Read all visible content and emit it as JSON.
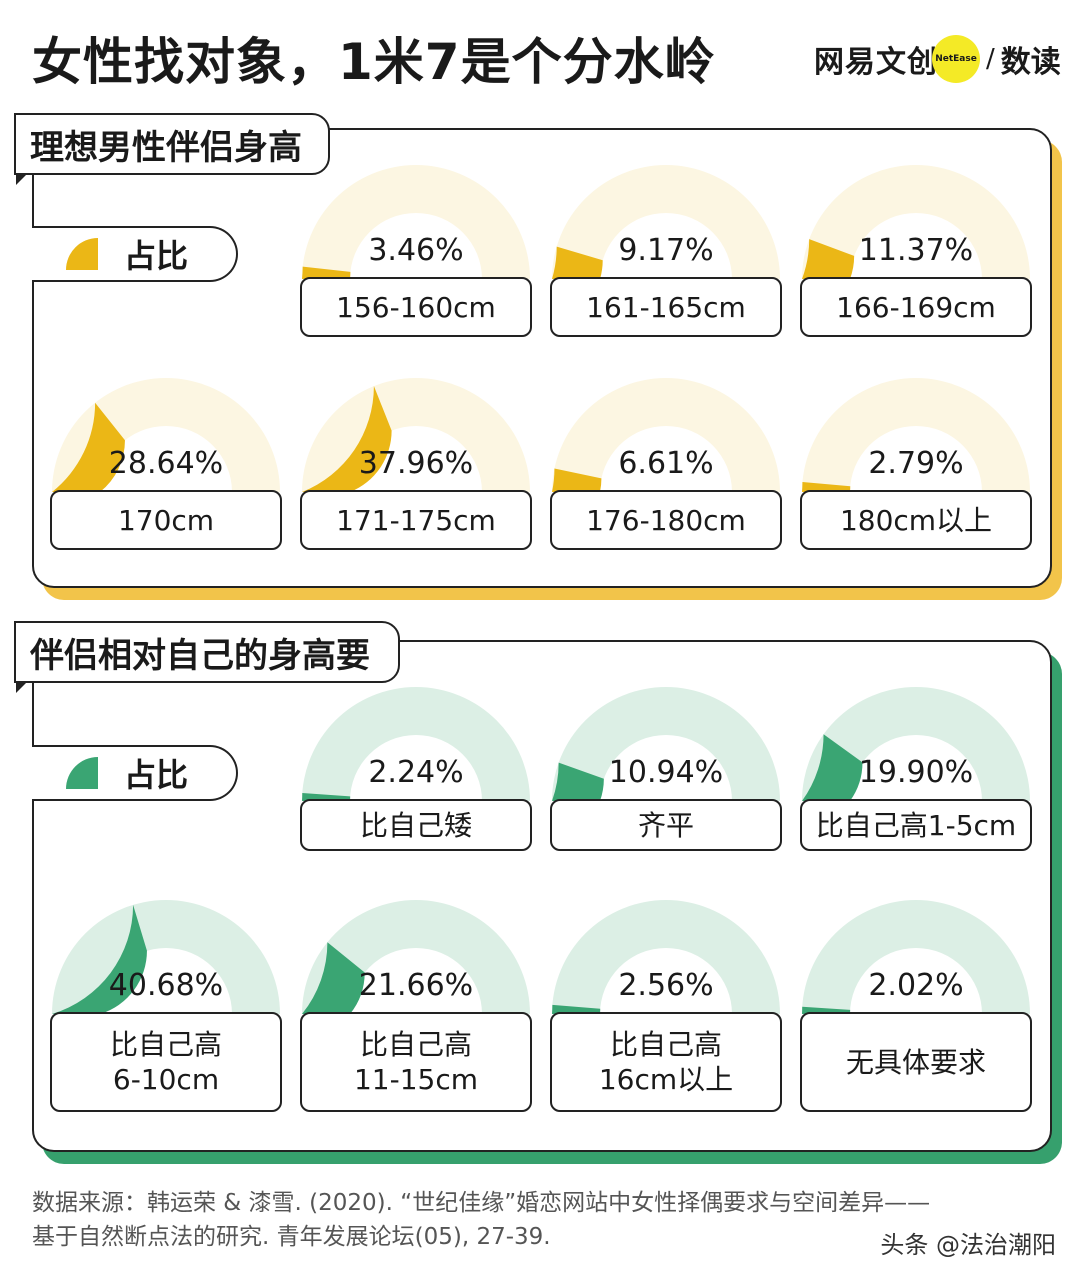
{
  "title": "女性找对象，1米7是个分水岭",
  "brand": {
    "name": "网易文创",
    "badge": "NetEase",
    "slash": "/",
    "sub": "数读"
  },
  "colors": {
    "yellow": "#ebb716",
    "yellow_track": "#fcf6e2",
    "green": "#3aa573",
    "green_track": "#dcefe5",
    "yellow_shadow": "#f2c44a",
    "green_shadow": "#36a06d"
  },
  "sections": [
    {
      "label": "理想男性伴侣身高",
      "legend": "占比",
      "items": [
        {
          "pct": "3.46%",
          "label": [
            "156-160cm"
          ]
        },
        {
          "pct": "9.17%",
          "label": [
            "161-165cm"
          ]
        },
        {
          "pct": "11.37%",
          "label": [
            "166-169cm"
          ]
        },
        {
          "pct": "28.64%",
          "label": [
            "170cm"
          ]
        },
        {
          "pct": "37.96%",
          "label": [
            "171-175cm"
          ]
        },
        {
          "pct": "6.61%",
          "label": [
            "176-180cm"
          ]
        },
        {
          "pct": "2.79%",
          "label": [
            "180cm以上"
          ]
        }
      ]
    },
    {
      "label": "伴侣相对自己的身高要",
      "legend": "占比",
      "items": [
        {
          "pct": "2.24%",
          "label": [
            "比自己矮"
          ]
        },
        {
          "pct": "10.94%",
          "label": [
            "齐平"
          ]
        },
        {
          "pct": "19.90%",
          "label": [
            "比自己高1-5cm"
          ]
        },
        {
          "pct": "40.68%",
          "label": [
            "比自己高",
            "6-10cm"
          ]
        },
        {
          "pct": "21.66%",
          "label": [
            "比自己高",
            "11-15cm"
          ]
        },
        {
          "pct": "2.56%",
          "label": [
            "比自己高",
            "16cm以上"
          ]
        },
        {
          "pct": "2.02%",
          "label": [
            "无具体要求"
          ]
        }
      ]
    }
  ],
  "chart_data": [
    {
      "type": "pie",
      "title": "理想男性伴侣身高",
      "legend": "占比",
      "categories": [
        "156-160cm",
        "161-165cm",
        "166-169cm",
        "170cm",
        "171-175cm",
        "176-180cm",
        "180cm以上"
      ],
      "values": [
        3.46,
        9.17,
        11.37,
        28.64,
        37.96,
        6.61,
        2.79
      ]
    },
    {
      "type": "pie",
      "title": "伴侣相对自己的身高要",
      "legend": "占比",
      "categories": [
        "比自己矮",
        "齐平",
        "比自己高1-5cm",
        "比自己高6-10cm",
        "比自己高11-15cm",
        "比自己高16cm以上",
        "无具体要求"
      ],
      "values": [
        2.24,
        10.94,
        19.9,
        40.68,
        21.66,
        2.56,
        2.02
      ]
    }
  ],
  "footer": {
    "line1": "数据来源：韩运荣 & 漆雪. (2020). “世纪佳缘”婚恋网站中女性择偶要求与空间差异——",
    "line2": "基于自然断点法的研究. 青年发展论坛(05), 27-39."
  },
  "watermark": "头条 @法治潮阳"
}
